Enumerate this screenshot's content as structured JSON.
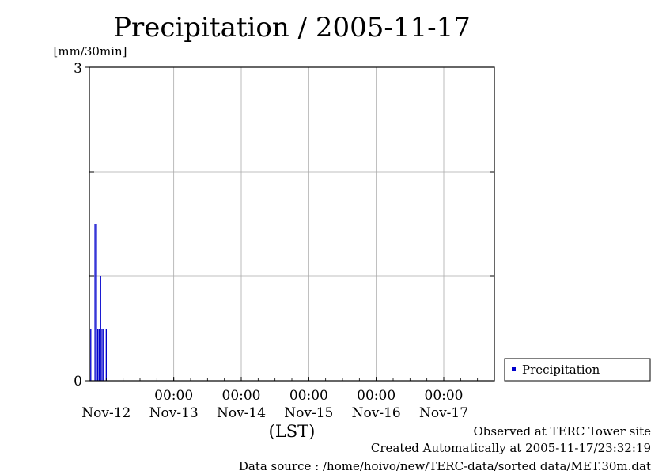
{
  "chart_data": {
    "type": "bar",
    "title": "Precipitation / 2005-11-17",
    "ylabel": "[mm/30min]",
    "xlabel": "(LST)",
    "ylim": [
      0,
      3
    ],
    "y_ticks": [
      "0",
      "3"
    ],
    "x_time_ticks": [
      "00:00",
      "00:00",
      "00:00",
      "00:00",
      "00:00"
    ],
    "x_day_labels": [
      "Nov-12",
      "Nov-13",
      "Nov-14",
      "Nov-15",
      "Nov-16",
      "Nov-17"
    ],
    "grid": true,
    "legend_position": "right",
    "series": [
      {
        "name": "Precipitation",
        "color": "#0000cc",
        "x": [
          "2005-11-11T18:30",
          "2005-11-11T20:00",
          "2005-11-11T20:30",
          "2005-11-11T21:00",
          "2005-11-11T21:30",
          "2005-11-11T22:00",
          "2005-11-11T22:30",
          "2005-11-11T23:00",
          "2005-11-12T00:00"
        ],
        "values": [
          0.5,
          1.5,
          1.5,
          0.5,
          0.5,
          1.0,
          0.5,
          0.5,
          0.5
        ]
      }
    ]
  },
  "footer": {
    "site": "Observed at TERC Tower site",
    "created": "Created Automatically at 2005-11-17/23:32:19",
    "source": "Data source : /home/hoivo/new/TERC-data/sorted  data/MET.30m.dat"
  }
}
